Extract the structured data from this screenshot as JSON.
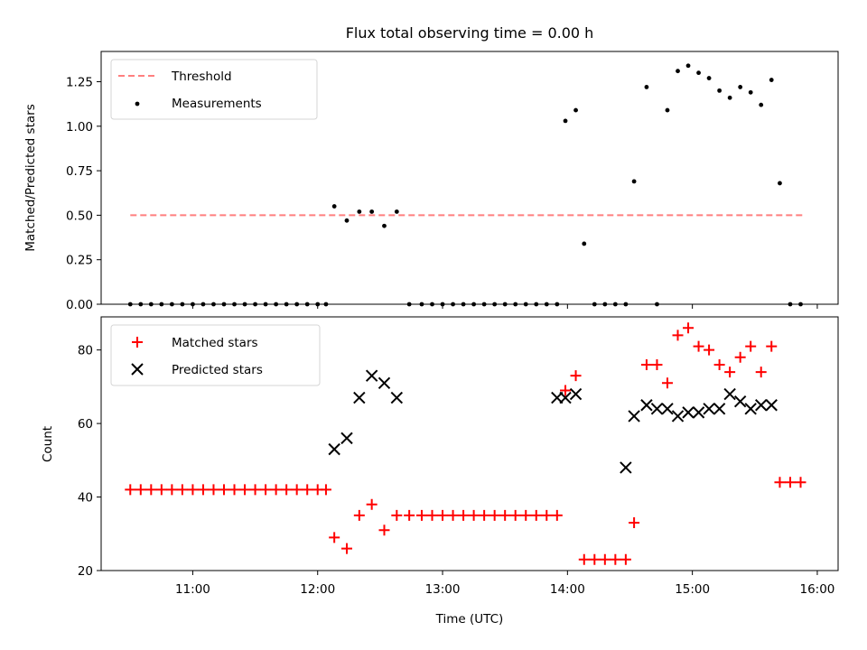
{
  "chart_data": [
    {
      "type": "scatter",
      "title": "Flux total observing time = 0.00 h",
      "ylabel": "Matched/Predicted stars",
      "xlabel": "",
      "xlim": [
        "10:16",
        "16:10"
      ],
      "ylim": [
        0,
        1.42
      ],
      "yticks": [
        "0.00",
        "0.25",
        "0.50",
        "0.75",
        "1.00",
        "1.25"
      ],
      "legend_position": "upper-left",
      "grid": false,
      "threshold": {
        "name": "Threshold",
        "value": 0.5,
        "x_start": "10:30",
        "x_end": "15:54",
        "color": "#ff7f7f"
      },
      "series": [
        {
          "name": "Measurements",
          "color": "#000000",
          "marker": "dot",
          "x": [
            "10:30",
            "10:35",
            "10:40",
            "10:45",
            "10:50",
            "10:55",
            "11:00",
            "11:05",
            "11:10",
            "11:15",
            "11:20",
            "11:25",
            "11:30",
            "11:35",
            "11:40",
            "11:45",
            "11:50",
            "11:55",
            "12:00",
            "12:04",
            "12:08",
            "12:14",
            "12:20",
            "12:26",
            "12:32",
            "12:38",
            "12:44",
            "12:50",
            "12:55",
            "13:00",
            "13:05",
            "13:10",
            "13:15",
            "13:20",
            "13:25",
            "13:30",
            "13:35",
            "13:40",
            "13:45",
            "13:50",
            "13:55",
            "13:59",
            "14:04",
            "14:08",
            "14:13",
            "14:18",
            "14:23",
            "14:28",
            "14:32",
            "14:38",
            "14:43",
            "14:48",
            "14:53",
            "14:58",
            "15:03",
            "15:08",
            "15:13",
            "15:18",
            "15:23",
            "15:28",
            "15:33",
            "15:38",
            "15:42",
            "15:47",
            "15:52"
          ],
          "y": [
            0,
            0,
            0,
            0,
            0,
            0,
            0,
            0,
            0,
            0,
            0,
            0,
            0,
            0,
            0,
            0,
            0,
            0,
            0,
            0,
            0.55,
            0.47,
            0.52,
            0.52,
            0.44,
            0.52,
            0,
            0,
            0,
            0,
            0,
            0,
            0,
            0,
            0,
            0,
            0,
            0,
            0,
            0,
            0,
            1.03,
            1.09,
            0.34,
            0,
            0,
            0,
            0,
            0.69,
            1.22,
            0,
            1.09,
            1.31,
            1.34,
            1.3,
            1.27,
            1.2,
            1.16,
            1.22,
            1.19,
            1.12,
            1.26,
            0.68,
            0,
            0
          ]
        }
      ]
    },
    {
      "type": "scatter",
      "title": "",
      "ylabel": "Count",
      "xlabel": "Time (UTC)",
      "xlim": [
        "10:16",
        "16:10"
      ],
      "ylim": [
        20,
        89
      ],
      "yticks": [
        "20",
        "40",
        "60",
        "80"
      ],
      "xticks": [
        "11:00",
        "12:00",
        "13:00",
        "14:00",
        "15:00",
        "16:00"
      ],
      "legend_position": "upper-left",
      "grid": false,
      "series": [
        {
          "name": "Matched stars",
          "color": "#ff0000",
          "marker": "plus",
          "x": [
            "10:30",
            "10:35",
            "10:40",
            "10:45",
            "10:50",
            "10:55",
            "11:00",
            "11:05",
            "11:10",
            "11:15",
            "11:20",
            "11:25",
            "11:30",
            "11:35",
            "11:40",
            "11:45",
            "11:50",
            "11:55",
            "12:00",
            "12:04",
            "12:08",
            "12:14",
            "12:20",
            "12:26",
            "12:32",
            "12:38",
            "12:44",
            "12:50",
            "12:55",
            "13:00",
            "13:05",
            "13:10",
            "13:15",
            "13:20",
            "13:25",
            "13:30",
            "13:35",
            "13:40",
            "13:45",
            "13:50",
            "13:55",
            "13:59",
            "14:04",
            "14:08",
            "14:13",
            "14:18",
            "14:23",
            "14:28",
            "14:32",
            "14:38",
            "14:43",
            "14:48",
            "14:53",
            "14:58",
            "15:03",
            "15:08",
            "15:13",
            "15:18",
            "15:23",
            "15:28",
            "15:33",
            "15:38",
            "15:42",
            "15:47",
            "15:52"
          ],
          "y": [
            42,
            42,
            42,
            42,
            42,
            42,
            42,
            42,
            42,
            42,
            42,
            42,
            42,
            42,
            42,
            42,
            42,
            42,
            42,
            42,
            29,
            26,
            35,
            38,
            31,
            35,
            35,
            35,
            35,
            35,
            35,
            35,
            35,
            35,
            35,
            35,
            35,
            35,
            35,
            35,
            35,
            69,
            73,
            23,
            23,
            23,
            23,
            23,
            33,
            76,
            76,
            71,
            84,
            86,
            81,
            80,
            76,
            74,
            78,
            81,
            74,
            81,
            44,
            44,
            44
          ]
        },
        {
          "name": "Predicted stars",
          "color": "#000000",
          "marker": "x",
          "x": [
            "12:08",
            "12:14",
            "12:20",
            "12:26",
            "12:32",
            "12:38",
            "13:55",
            "13:59",
            "14:04",
            "14:28",
            "14:32",
            "14:38",
            "14:43",
            "14:48",
            "14:53",
            "14:58",
            "15:03",
            "15:08",
            "15:13",
            "15:18",
            "15:23",
            "15:28",
            "15:33",
            "15:38"
          ],
          "y": [
            53,
            56,
            67,
            73,
            71,
            67,
            67,
            67,
            68,
            48,
            62,
            65,
            64,
            64,
            62,
            63,
            63,
            64,
            64,
            68,
            66,
            64,
            65,
            65
          ]
        }
      ]
    }
  ]
}
